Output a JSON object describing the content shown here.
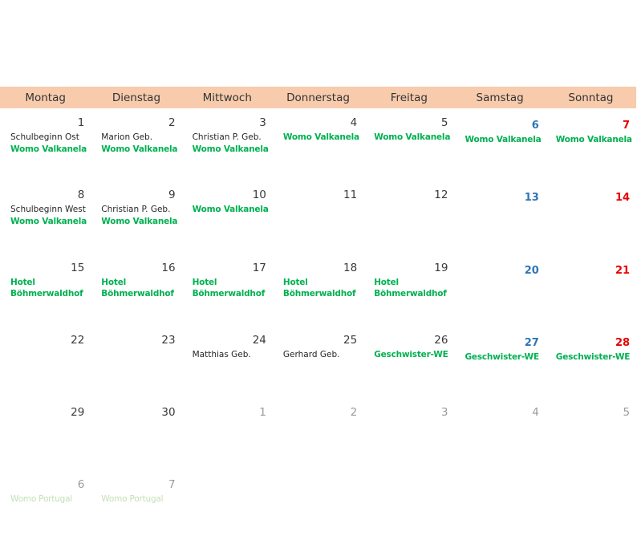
{
  "calendar": {
    "weekdays": [
      "Montag",
      "Dienstag",
      "Mittwoch",
      "Donnerstag",
      "Freitag",
      "Samstag",
      "Sonntag"
    ],
    "weeks": [
      [
        {
          "day": "1",
          "type": "normal",
          "events": [
            {
              "text": "Schulbeginn Ost",
              "style": "plain"
            },
            {
              "text": "Womo Valkanela",
              "style": "green"
            }
          ]
        },
        {
          "day": "2",
          "type": "normal",
          "events": [
            {
              "text": "Marion Geb.",
              "style": "plain"
            },
            {
              "text": "Womo Valkanela",
              "style": "green"
            }
          ]
        },
        {
          "day": "3",
          "type": "normal",
          "events": [
            {
              "text": "Christian P. Geb.",
              "style": "plain"
            },
            {
              "text": "Womo Valkanela",
              "style": "green"
            }
          ]
        },
        {
          "day": "4",
          "type": "normal",
          "events": [
            {
              "text": "Womo Valkanela",
              "style": "green"
            }
          ]
        },
        {
          "day": "5",
          "type": "normal",
          "events": [
            {
              "text": "Womo Valkanela",
              "style": "green"
            }
          ]
        },
        {
          "day": "6",
          "type": "sat",
          "events": [
            {
              "text": "Womo Valkanela",
              "style": "green"
            }
          ]
        },
        {
          "day": "7",
          "type": "sun",
          "events": [
            {
              "text": "Womo Valkanela",
              "style": "green"
            }
          ]
        }
      ],
      [
        {
          "day": "8",
          "type": "normal",
          "events": [
            {
              "text": "Schulbeginn West",
              "style": "plain"
            },
            {
              "text": "Womo Valkanela",
              "style": "green"
            }
          ]
        },
        {
          "day": "9",
          "type": "normal",
          "events": [
            {
              "text": "Christian P. Geb.",
              "style": "plain"
            },
            {
              "text": "Womo Valkanela",
              "style": "green"
            }
          ]
        },
        {
          "day": "10",
          "type": "normal",
          "events": [
            {
              "text": "Womo Valkanela",
              "style": "green"
            }
          ]
        },
        {
          "day": "11",
          "type": "normal",
          "events": []
        },
        {
          "day": "12",
          "type": "normal",
          "events": []
        },
        {
          "day": "13",
          "type": "sat",
          "events": []
        },
        {
          "day": "14",
          "type": "sun",
          "events": []
        }
      ],
      [
        {
          "day": "15",
          "type": "normal",
          "events": [
            {
              "text": "Hotel Böhmerwaldhof",
              "style": "green"
            }
          ]
        },
        {
          "day": "16",
          "type": "normal",
          "events": [
            {
              "text": "Hotel Böhmerwaldhof",
              "style": "green"
            }
          ]
        },
        {
          "day": "17",
          "type": "normal",
          "events": [
            {
              "text": "Hotel Böhmerwaldhof",
              "style": "green"
            }
          ]
        },
        {
          "day": "18",
          "type": "normal",
          "events": [
            {
              "text": "Hotel Böhmerwaldhof",
              "style": "green"
            }
          ]
        },
        {
          "day": "19",
          "type": "normal",
          "events": [
            {
              "text": "Hotel Böhmerwaldhof",
              "style": "green"
            }
          ]
        },
        {
          "day": "20",
          "type": "sat",
          "events": []
        },
        {
          "day": "21",
          "type": "sun",
          "events": []
        }
      ],
      [
        {
          "day": "22",
          "type": "normal",
          "events": []
        },
        {
          "day": "23",
          "type": "normal",
          "events": []
        },
        {
          "day": "24",
          "type": "normal",
          "events": [
            {
              "text": "Matthias Geb.",
              "style": "plain"
            }
          ]
        },
        {
          "day": "25",
          "type": "normal",
          "events": [
            {
              "text": "Gerhard Geb.",
              "style": "plain"
            }
          ]
        },
        {
          "day": "26",
          "type": "normal",
          "events": [
            {
              "text": "Geschwister-WE",
              "style": "green"
            }
          ]
        },
        {
          "day": "27",
          "type": "sat",
          "events": [
            {
              "text": "Geschwister-WE",
              "style": "green"
            }
          ]
        },
        {
          "day": "28",
          "type": "sun",
          "events": [
            {
              "text": "Geschwister-WE",
              "style": "green"
            }
          ]
        }
      ],
      [
        {
          "day": "29",
          "type": "normal",
          "events": []
        },
        {
          "day": "30",
          "type": "normal",
          "events": []
        },
        {
          "day": "1",
          "type": "other",
          "events": []
        },
        {
          "day": "2",
          "type": "other",
          "events": []
        },
        {
          "day": "3",
          "type": "other",
          "events": []
        },
        {
          "day": "4",
          "type": "other",
          "events": []
        },
        {
          "day": "5",
          "type": "other",
          "events": []
        }
      ],
      [
        {
          "day": "6",
          "type": "other",
          "events": [
            {
              "text": "Womo Portugal",
              "style": "light"
            }
          ]
        },
        {
          "day": "7",
          "type": "other",
          "events": [
            {
              "text": "Womo Portugal",
              "style": "light"
            }
          ]
        }
      ]
    ]
  },
  "colors": {
    "header_background": "#f8cbad",
    "saturday": "#2e75b6",
    "sunday": "#e60000",
    "event_green": "#00b050",
    "event_light": "#c5e0b4",
    "other_month": "#9a9a9a"
  }
}
